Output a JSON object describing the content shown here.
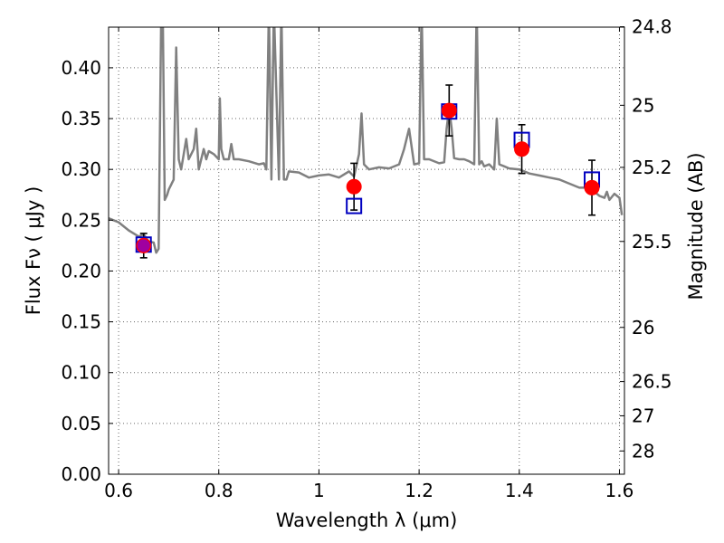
{
  "chart_data": {
    "type": "line",
    "xlabel": "Wavelength  λ (μm)",
    "ylabel": "Flux  Fν  ( μJy )",
    "y2label": "Magnitude (AB)",
    "xlim": [
      0.58,
      1.61
    ],
    "ylim": [
      0.0,
      0.44
    ],
    "grid": true,
    "x_ticks": [
      {
        "value": 0.6,
        "label": "0.6"
      },
      {
        "value": 0.8,
        "label": "0.8"
      },
      {
        "value": 1.0,
        "label": "1"
      },
      {
        "value": 1.2,
        "label": "1.2"
      },
      {
        "value": 1.4,
        "label": "1.4"
      },
      {
        "value": 1.6,
        "label": "1.6"
      }
    ],
    "y_ticks": [
      {
        "value": 0.0,
        "label": "0.00"
      },
      {
        "value": 0.05,
        "label": "0.05"
      },
      {
        "value": 0.1,
        "label": "0.10"
      },
      {
        "value": 0.15,
        "label": "0.15"
      },
      {
        "value": 0.2,
        "label": "0.20"
      },
      {
        "value": 0.25,
        "label": "0.25"
      },
      {
        "value": 0.3,
        "label": "0.30"
      },
      {
        "value": 0.35,
        "label": "0.35"
      },
      {
        "value": 0.4,
        "label": "0.40"
      }
    ],
    "y2_ticks": [
      {
        "flux": 0.4404,
        "label": "24.8"
      },
      {
        "flux": 0.3631,
        "label": "25"
      },
      {
        "flux": 0.302,
        "label": "25.2"
      },
      {
        "flux": 0.2291,
        "label": "25.5"
      },
      {
        "flux": 0.1445,
        "label": "26"
      },
      {
        "flux": 0.0912,
        "label": "26.5"
      },
      {
        "flux": 0.0575,
        "label": "27"
      },
      {
        "flux": 0.0229,
        "label": "28"
      }
    ],
    "series": [
      {
        "style": "model-spectrum",
        "color": "#808080",
        "x": [
          0.58,
          0.6,
          0.62,
          0.64,
          0.65,
          0.66,
          0.67,
          0.675,
          0.68,
          0.685,
          0.688,
          0.692,
          0.697,
          0.7,
          0.71,
          0.715,
          0.72,
          0.725,
          0.73,
          0.735,
          0.74,
          0.75,
          0.755,
          0.76,
          0.77,
          0.775,
          0.78,
          0.79,
          0.8,
          0.802,
          0.805,
          0.81,
          0.82,
          0.825,
          0.83,
          0.84,
          0.86,
          0.88,
          0.89,
          0.895,
          0.9,
          0.905,
          0.91,
          0.92,
          0.925,
          0.93,
          0.935,
          0.94,
          0.96,
          0.98,
          1.0,
          1.02,
          1.04,
          1.06,
          1.07,
          1.08,
          1.085,
          1.09,
          1.1,
          1.12,
          1.14,
          1.16,
          1.17,
          1.18,
          1.19,
          1.2,
          1.205,
          1.21,
          1.22,
          1.24,
          1.25,
          1.255,
          1.26,
          1.265,
          1.27,
          1.28,
          1.29,
          1.3,
          1.31,
          1.315,
          1.32,
          1.325,
          1.33,
          1.34,
          1.35,
          1.355,
          1.36,
          1.37,
          1.38,
          1.4,
          1.42,
          1.44,
          1.46,
          1.48,
          1.5,
          1.52,
          1.54,
          1.55,
          1.56,
          1.57,
          1.575,
          1.58,
          1.59,
          1.6,
          1.605
        ],
        "y": [
          0.252,
          0.248,
          0.24,
          0.234,
          0.236,
          0.229,
          0.228,
          0.218,
          0.222,
          0.45,
          0.46,
          0.27,
          0.275,
          0.28,
          0.29,
          0.42,
          0.31,
          0.3,
          0.315,
          0.33,
          0.31,
          0.32,
          0.34,
          0.3,
          0.32,
          0.31,
          0.318,
          0.315,
          0.31,
          0.37,
          0.32,
          0.31,
          0.31,
          0.325,
          0.31,
          0.31,
          0.308,
          0.305,
          0.306,
          0.3,
          0.46,
          0.29,
          0.46,
          0.29,
          0.46,
          0.29,
          0.29,
          0.298,
          0.297,
          0.292,
          0.294,
          0.295,
          0.292,
          0.298,
          0.293,
          0.315,
          0.355,
          0.305,
          0.3,
          0.302,
          0.301,
          0.305,
          0.32,
          0.34,
          0.305,
          0.306,
          0.46,
          0.31,
          0.31,
          0.306,
          0.307,
          0.34,
          0.36,
          0.34,
          0.311,
          0.31,
          0.31,
          0.308,
          0.305,
          0.46,
          0.305,
          0.308,
          0.303,
          0.305,
          0.3,
          0.35,
          0.305,
          0.303,
          0.301,
          0.3,
          0.296,
          0.294,
          0.292,
          0.29,
          0.286,
          0.282,
          0.282,
          0.278,
          0.274,
          0.272,
          0.278,
          0.27,
          0.276,
          0.272,
          0.255
        ]
      },
      {
        "style": "observed-points",
        "color": "#ff0000",
        "x": [
          0.65,
          1.07,
          1.26,
          1.405,
          1.545
        ],
        "y": [
          0.225,
          0.283,
          0.358,
          0.32,
          0.282
        ],
        "err": [
          0.012,
          0.023,
          0.025,
          0.024,
          0.027
        ]
      },
      {
        "style": "model-points",
        "color": "#0000c0",
        "x": [
          0.65,
          1.07,
          1.26,
          1.405,
          1.545
        ],
        "y": [
          0.226,
          0.264,
          0.357,
          0.329,
          0.29
        ]
      }
    ]
  }
}
